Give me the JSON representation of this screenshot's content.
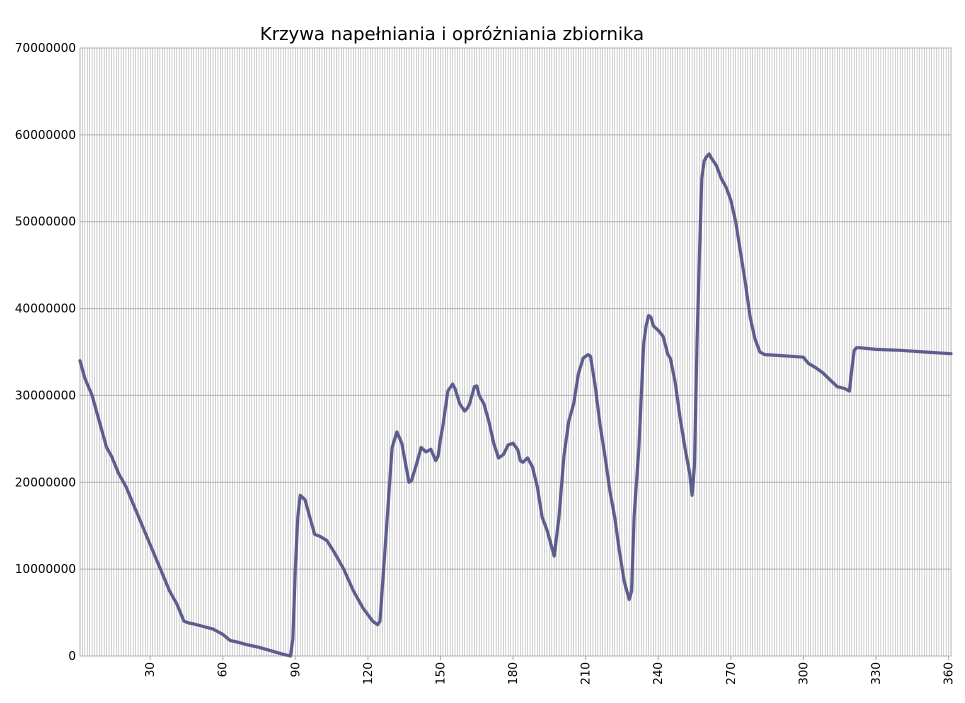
{
  "chart_data": {
    "type": "line",
    "title": "Krzywa napełniania i opróżniania zbiornika",
    "xlabel": "",
    "ylabel": "",
    "xlim": [
      1,
      361
    ],
    "ylim": [
      0,
      70000000
    ],
    "yticks": [
      0,
      10000000,
      20000000,
      30000000,
      40000000,
      50000000,
      60000000,
      70000000
    ],
    "ytick_labels": [
      "0",
      "10000000",
      "20000000",
      "30000000",
      "40000000",
      "50000000",
      "60000000",
      "70000000"
    ],
    "xticks": [
      30,
      60,
      90,
      120,
      150,
      180,
      210,
      240,
      270,
      300,
      330,
      360
    ],
    "xtick_labels": [
      "30",
      "60",
      "90",
      "120",
      "150",
      "180",
      "210",
      "240",
      "270",
      "300",
      "330",
      "360"
    ],
    "grid": true,
    "line_color": "#5d5d8d",
    "series": [
      {
        "name": "",
        "x": [
          1,
          3,
          6,
          8,
          10,
          12,
          14,
          17,
          20,
          23,
          26,
          29,
          32,
          35,
          38,
          41,
          44,
          46,
          48,
          52,
          56,
          60,
          63,
          66,
          70,
          75,
          80,
          85,
          88,
          89,
          90,
          91,
          92,
          94,
          96,
          98,
          100,
          103,
          106,
          110,
          114,
          118,
          122,
          124,
          125,
          126,
          128,
          130,
          132,
          134,
          136,
          137,
          138,
          140,
          142,
          144,
          146,
          148,
          149,
          150,
          151,
          153,
          155,
          156,
          158,
          160,
          161,
          162,
          164,
          165,
          166,
          168,
          170,
          172,
          174,
          176,
          178,
          180,
          182,
          183,
          184,
          186,
          188,
          190,
          192,
          194,
          195,
          196,
          197,
          199,
          201,
          203,
          205,
          207,
          209,
          211,
          212,
          214,
          216,
          218,
          220,
          222,
          224,
          226,
          228,
          229,
          230,
          232,
          234,
          235,
          236,
          237,
          238,
          240,
          242,
          244,
          245,
          247,
          249,
          251,
          253,
          254,
          255,
          256,
          257,
          258,
          259,
          260,
          261,
          262,
          264,
          266,
          268,
          270,
          272,
          274,
          276,
          278,
          280,
          282,
          284,
          290,
          295,
          300,
          302,
          305,
          308,
          311,
          314,
          317,
          319,
          320,
          321,
          322,
          323,
          330,
          340,
          350,
          361
        ],
        "y": [
          34000000,
          32000000,
          30000000,
          28000000,
          26000000,
          24000000,
          23000000,
          21000000,
          19500000,
          17500000,
          15500000,
          13500000,
          11500000,
          9500000,
          7500000,
          6000000,
          4000000,
          3800000,
          3700000,
          3400000,
          3100000,
          2500000,
          1800000,
          1600000,
          1300000,
          1000000,
          600000,
          200000,
          0,
          2000000,
          10000000,
          16000000,
          18500000,
          18000000,
          16000000,
          14000000,
          13800000,
          13300000,
          12000000,
          10000000,
          7500000,
          5500000,
          4000000,
          3600000,
          4000000,
          8000000,
          16000000,
          24000000,
          25800000,
          24500000,
          21500000,
          20000000,
          20200000,
          22000000,
          24000000,
          23500000,
          23800000,
          22500000,
          23000000,
          25000000,
          26500000,
          30500000,
          31300000,
          30800000,
          29000000,
          28200000,
          28500000,
          29000000,
          31000000,
          31100000,
          30000000,
          29000000,
          27000000,
          24500000,
          22800000,
          23200000,
          24300000,
          24500000,
          23700000,
          22500000,
          22300000,
          22800000,
          21800000,
          19500000,
          16000000,
          14500000,
          13500000,
          12500000,
          11500000,
          16000000,
          23000000,
          27000000,
          29000000,
          32500000,
          34300000,
          34700000,
          34500000,
          31000000,
          26500000,
          23000000,
          19000000,
          16000000,
          12000000,
          8500000,
          6500000,
          7500000,
          16000000,
          24000000,
          36000000,
          38000000,
          39200000,
          39000000,
          38000000,
          37500000,
          36800000,
          34700000,
          34300000,
          31500000,
          27500000,
          24000000,
          21000000,
          18500000,
          22000000,
          36000000,
          46000000,
          55000000,
          57000000,
          57500000,
          57800000,
          57300000,
          56500000,
          55000000,
          54000000,
          52500000,
          50000000,
          46500000,
          43000000,
          39000000,
          36500000,
          35000000,
          34700000,
          34600000,
          34500000,
          34400000,
          33700000,
          33200000,
          32600000,
          31800000,
          31000000,
          30800000,
          30500000,
          33000000,
          35200000,
          35500000,
          35500000,
          35300000,
          35200000,
          35000000,
          34800000
        ]
      }
    ]
  }
}
